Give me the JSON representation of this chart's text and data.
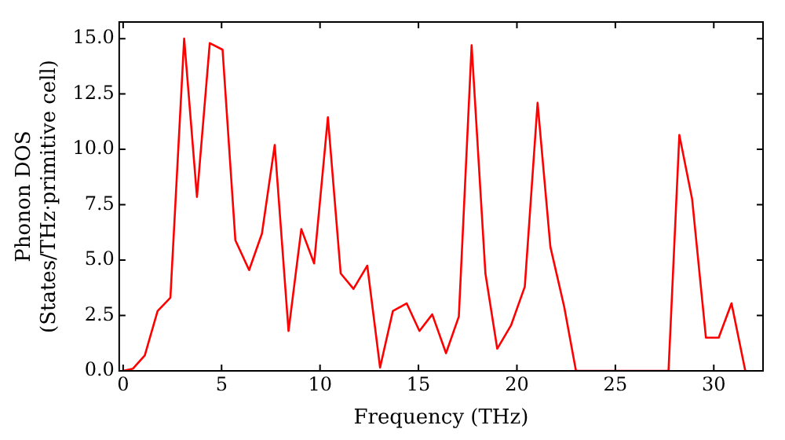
{
  "chart_data": {
    "type": "line",
    "xlabel": "Frequency (THz)",
    "ylabel": "Phonon DOS\n(States/THz·primitive cell)",
    "x": [
      0,
      0.5,
      1.1,
      1.75,
      2.4,
      3.1,
      3.75,
      4.4,
      5.05,
      5.7,
      6.4,
      7.05,
      7.7,
      8.4,
      9.05,
      9.7,
      10.4,
      11.05,
      11.7,
      12.4,
      13.05,
      13.7,
      14.4,
      15.05,
      15.7,
      16.4,
      17.05,
      17.7,
      18.4,
      19.0,
      19.7,
      20.4,
      21.05,
      21.7,
      22.4,
      23.0,
      27.7,
      28.25,
      28.9,
      29.6,
      30.25,
      30.9,
      31.6
    ],
    "series": [
      {
        "color": "#ff0000",
        "values": [
          0,
          0.1,
          0.7,
          2.7,
          3.3,
          15.0,
          7.85,
          14.8,
          14.5,
          5.9,
          4.55,
          6.2,
          10.2,
          1.8,
          6.4,
          4.85,
          11.45,
          4.4,
          3.7,
          4.75,
          0.15,
          2.7,
          3.05,
          1.8,
          2.55,
          0.8,
          2.45,
          14.7,
          4.4,
          1.0,
          2.05,
          3.8,
          12.1,
          5.6,
          2.9,
          0,
          0,
          10.65,
          7.75,
          1.5,
          1.5,
          3.05,
          0
        ]
      }
    ],
    "xlim": [
      -0.2,
      32.5
    ],
    "ylim": [
      0,
      15.75
    ],
    "xticks": [
      0,
      5,
      10,
      15,
      20,
      25,
      30
    ],
    "yticks": [
      {
        "value": 0,
        "label": "0.0"
      },
      2.5,
      {
        "value": 5,
        "label": "5.0"
      },
      7.5,
      {
        "value": 10,
        "label": "10.0"
      },
      12.5,
      {
        "value": 15,
        "label": "15.0"
      }
    ],
    "grid": false,
    "legend": false,
    "marker": "none",
    "line_style": "solid"
  }
}
